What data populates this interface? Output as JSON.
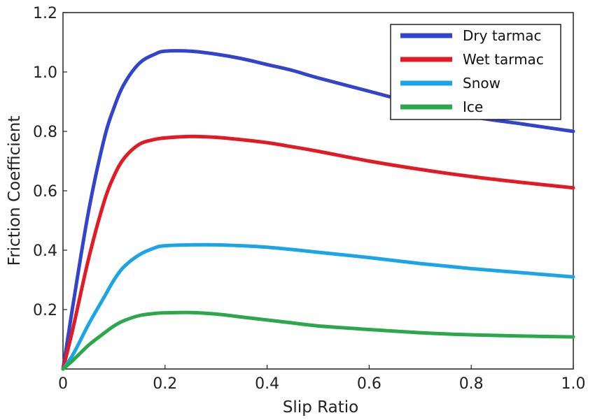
{
  "chart_data": {
    "type": "line",
    "title": "",
    "xlabel": "Slip Ratio",
    "ylabel": "Friction Coefficient",
    "xlim": [
      0,
      1.0
    ],
    "ylim": [
      0,
      1.2
    ],
    "grid": false,
    "legend_position": "top-right",
    "x_ticks": [
      "0",
      "0.2",
      "0.4",
      "0.6",
      "0.8",
      "1.0"
    ],
    "y_ticks": [
      "0.2",
      "0.4",
      "0.6",
      "0.8",
      "1.0",
      "1.2"
    ],
    "x_tick_values": [
      0,
      0.2,
      0.4,
      0.6,
      0.8,
      1.0
    ],
    "y_tick_values": [
      0.2,
      0.4,
      0.6,
      0.8,
      1.0,
      1.2
    ],
    "x": [
      0,
      0.02,
      0.05,
      0.08,
      0.1,
      0.12,
      0.15,
      0.18,
      0.2,
      0.25,
      0.3,
      0.35,
      0.4,
      0.45,
      0.5,
      0.6,
      0.7,
      0.8,
      0.9,
      1.0
    ],
    "series": [
      {
        "name": "Dry tarmac",
        "color": "#3344cc",
        "values": [
          0,
          0.22,
          0.53,
          0.77,
          0.88,
          0.96,
          1.03,
          1.06,
          1.07,
          1.07,
          1.06,
          1.045,
          1.025,
          1.005,
          0.98,
          0.935,
          0.89,
          0.85,
          0.825,
          0.8
        ]
      },
      {
        "name": "Wet tarmac",
        "color": "#e21a23",
        "values": [
          0,
          0.14,
          0.37,
          0.56,
          0.65,
          0.71,
          0.757,
          0.773,
          0.778,
          0.783,
          0.78,
          0.772,
          0.762,
          0.748,
          0.733,
          0.7,
          0.672,
          0.648,
          0.628,
          0.61
        ]
      },
      {
        "name": "Snow",
        "color": "#1aa5e6",
        "values": [
          0,
          0.05,
          0.15,
          0.24,
          0.3,
          0.345,
          0.385,
          0.408,
          0.415,
          0.418,
          0.418,
          0.415,
          0.41,
          0.402,
          0.393,
          0.375,
          0.355,
          0.338,
          0.324,
          0.31
        ]
      },
      {
        "name": "Ice",
        "color": "#2aa84a",
        "values": [
          0,
          0.03,
          0.08,
          0.12,
          0.145,
          0.163,
          0.18,
          0.187,
          0.189,
          0.19,
          0.185,
          0.175,
          0.165,
          0.155,
          0.145,
          0.133,
          0.122,
          0.115,
          0.111,
          0.108
        ]
      }
    ]
  }
}
